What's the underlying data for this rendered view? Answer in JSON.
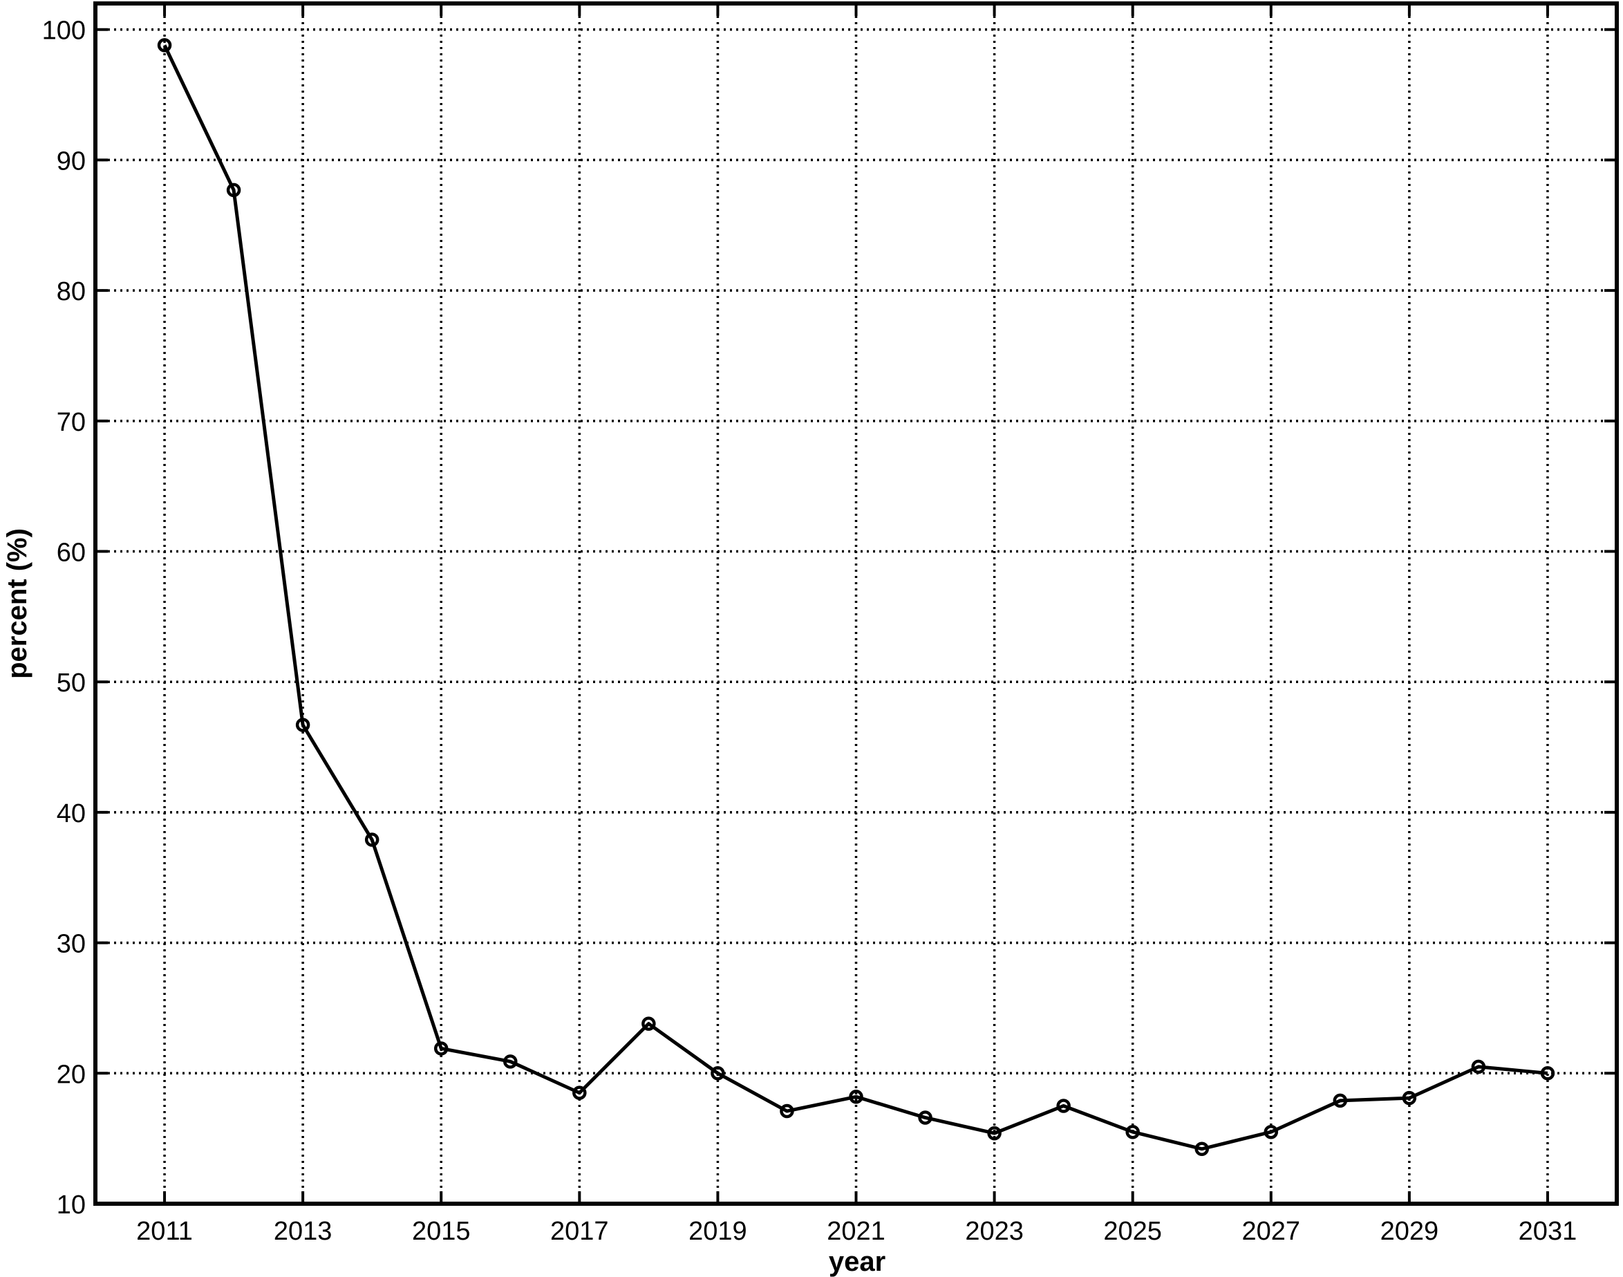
{
  "chart_data": {
    "type": "line",
    "title": "",
    "xlabel": "year",
    "ylabel": "percent (%)",
    "xlim": [
      2010,
      2032
    ],
    "ylim": [
      10,
      102
    ],
    "grid": true,
    "x_ticks": [
      2011,
      2013,
      2015,
      2017,
      2019,
      2021,
      2023,
      2025,
      2027,
      2029,
      2031
    ],
    "y_ticks": [
      10,
      20,
      30,
      40,
      50,
      60,
      70,
      80,
      90,
      100
    ],
    "marker": "circle",
    "line_color": "#000000",
    "series": [
      {
        "x": [
          2011,
          2012,
          2013,
          2014,
          2015,
          2016,
          2017,
          2018,
          2019,
          2020,
          2021,
          2022,
          2023,
          2024,
          2025,
          2026,
          2027,
          2028,
          2029,
          2030,
          2031
        ],
        "values": [
          98.8,
          87.7,
          46.7,
          37.9,
          21.9,
          20.9,
          18.5,
          23.8,
          20.0,
          17.1,
          18.2,
          16.6,
          15.4,
          17.5,
          15.5,
          14.2,
          15.5,
          17.9,
          18.1,
          20.5,
          20.0
        ]
      }
    ]
  }
}
